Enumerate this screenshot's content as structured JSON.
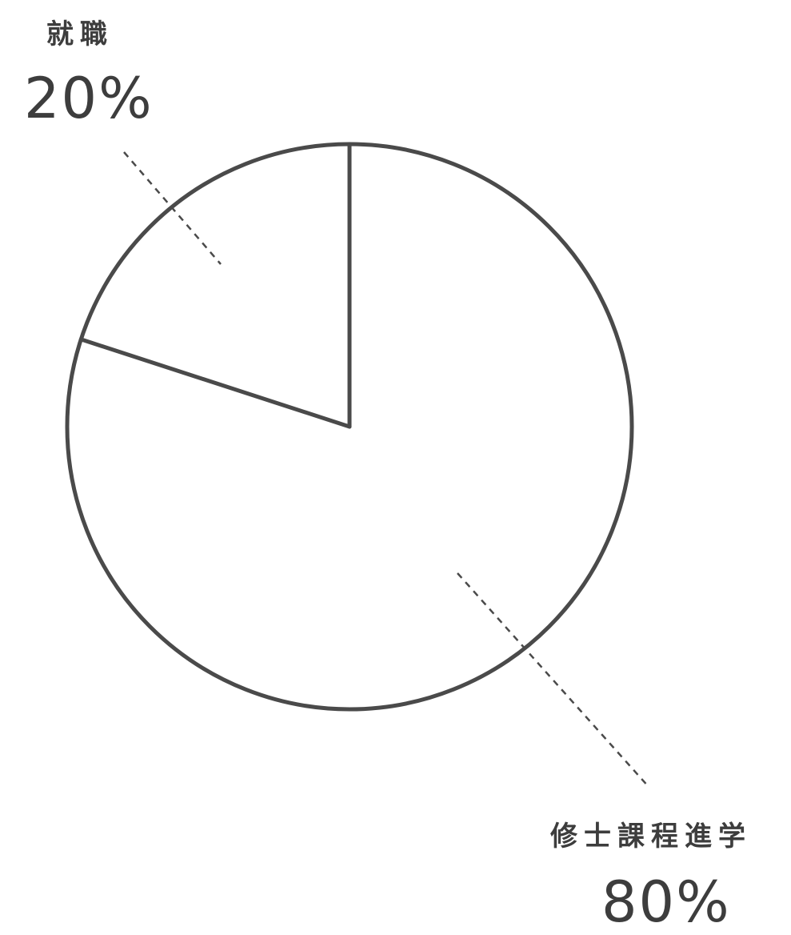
{
  "chart_data": {
    "type": "pie",
    "slices": [
      {
        "label": "就職",
        "value": 20,
        "value_label": "20%"
      },
      {
        "label": "修士課程進学",
        "value": 80,
        "value_label": "80%"
      }
    ],
    "start_angle": "12 o'clock",
    "direction": "counter-clockwise for first slice",
    "fill": "none",
    "legend": "none"
  },
  "colors": {
    "stroke": "#4a4a4a",
    "text": "#3d3d3d",
    "background": "#ffffff"
  }
}
